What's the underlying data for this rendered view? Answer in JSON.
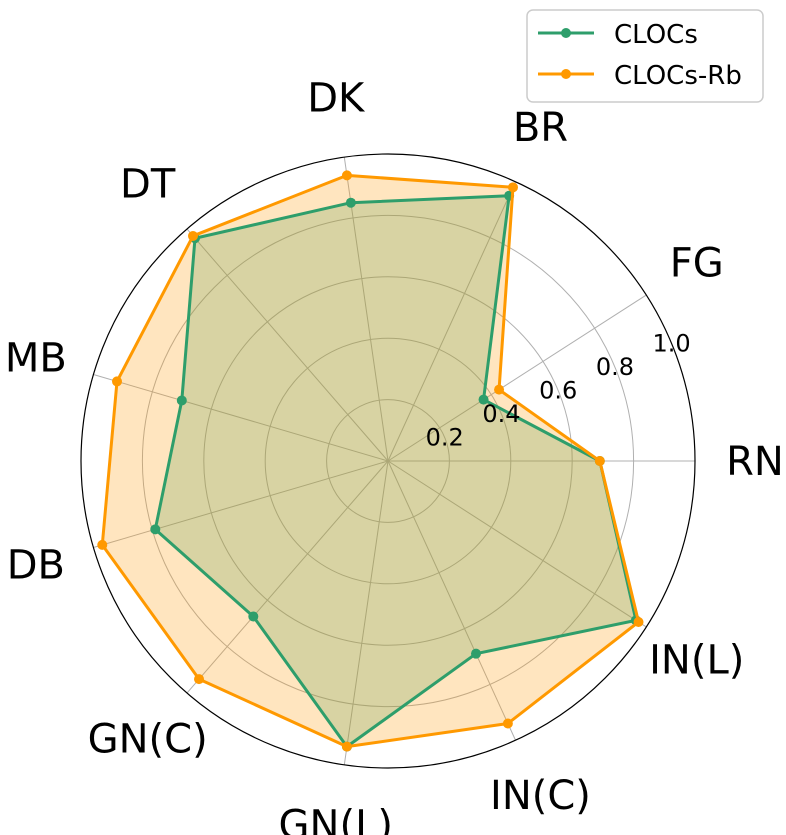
{
  "chart_data": {
    "type": "radar",
    "categories": [
      "RN",
      "FG",
      "BR",
      "DK",
      "DT",
      "MB",
      "DB",
      "GN(C)",
      "GN(L)",
      "IN(C)",
      "IN(L)"
    ],
    "radial_ticks": [
      "0.2",
      "0.4",
      "0.6",
      "0.8",
      "1.0"
    ],
    "rlim": [
      0,
      1.0
    ],
    "grid": true,
    "legend_position": "top-right",
    "series": [
      {
        "name": "CLOCs",
        "color": "#2e9e6b",
        "values": [
          0.69,
          0.37,
          0.95,
          0.85,
          0.96,
          0.7,
          0.79,
          0.67,
          0.94,
          0.69,
          0.96
        ]
      },
      {
        "name": "CLOCs-Rb",
        "color": "#ff9900",
        "values": [
          0.69,
          0.43,
          0.98,
          0.94,
          0.97,
          0.92,
          0.97,
          0.94,
          0.94,
          0.94,
          0.97
        ]
      }
    ]
  }
}
